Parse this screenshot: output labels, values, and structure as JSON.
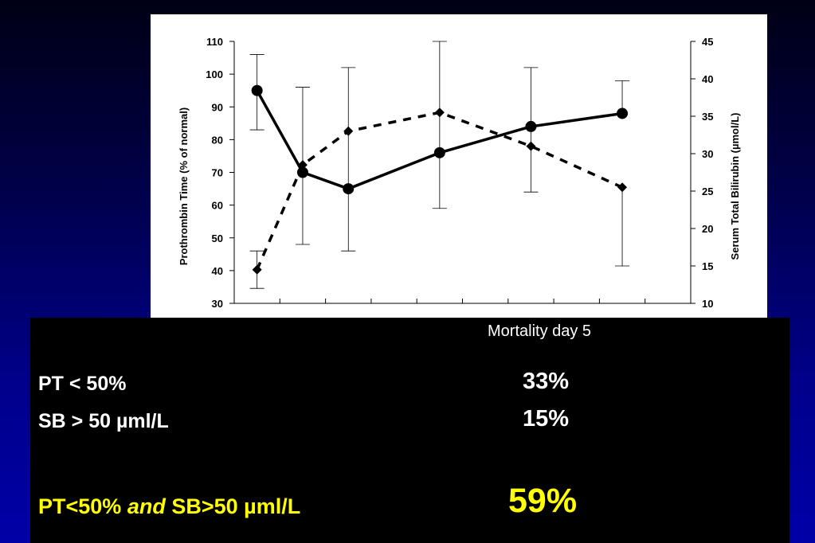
{
  "chart_data": {
    "type": "line",
    "title": "",
    "xlabel": "",
    "ylabel": "Prothrombin Time (% of normal)",
    "y2label": "Serum Total Bilirubin (µmol/L)",
    "ylim": [
      30,
      110
    ],
    "y2lim": [
      10,
      45
    ],
    "yticks": [
      "30",
      "40",
      "50",
      "60",
      "70",
      "80",
      "90",
      "100",
      "110"
    ],
    "y2ticks": [
      "10",
      "15",
      "20",
      "25",
      "30",
      "35",
      "40",
      "45"
    ],
    "x_slots": 10,
    "grid": false,
    "legend": "none",
    "series": [
      {
        "style": "solid",
        "marker": "circle",
        "axis": "left",
        "x": [
          1,
          2,
          3,
          5,
          7,
          9
        ],
        "values": [
          95,
          70,
          65,
          76,
          84,
          88
        ],
        "error_low": [
          83,
          48,
          46,
          59,
          64,
          null
        ],
        "error_high": [
          106,
          96,
          102,
          110,
          102,
          98
        ]
      },
      {
        "style": "dashed",
        "marker": "diamond",
        "axis": "right",
        "x": [
          1,
          2,
          3,
          5,
          7,
          9
        ],
        "values": [
          14.5,
          28.5,
          33,
          35.5,
          31,
          25.5
        ],
        "error_low": [
          12,
          null,
          null,
          null,
          null,
          15
        ],
        "error_high": [
          17,
          null,
          null,
          null,
          null,
          null
        ]
      }
    ]
  },
  "table": {
    "column_header": "Mortality day 5",
    "rows": [
      {
        "label": "PT < 50%",
        "value": "33%"
      },
      {
        "label": "SB > 50 µml/L",
        "value": "15%"
      }
    ],
    "combined": {
      "label_pre": "PT<50% ",
      "label_em": "and",
      "label_post": " SB>50 µml/L",
      "value": "59%"
    }
  },
  "colors": {
    "background_gradient": [
      "#000014",
      "#0000a8"
    ],
    "table_background": "#000000",
    "highlight": "#ffff00",
    "text": "#ffffff",
    "chart_ink": "#000000"
  }
}
